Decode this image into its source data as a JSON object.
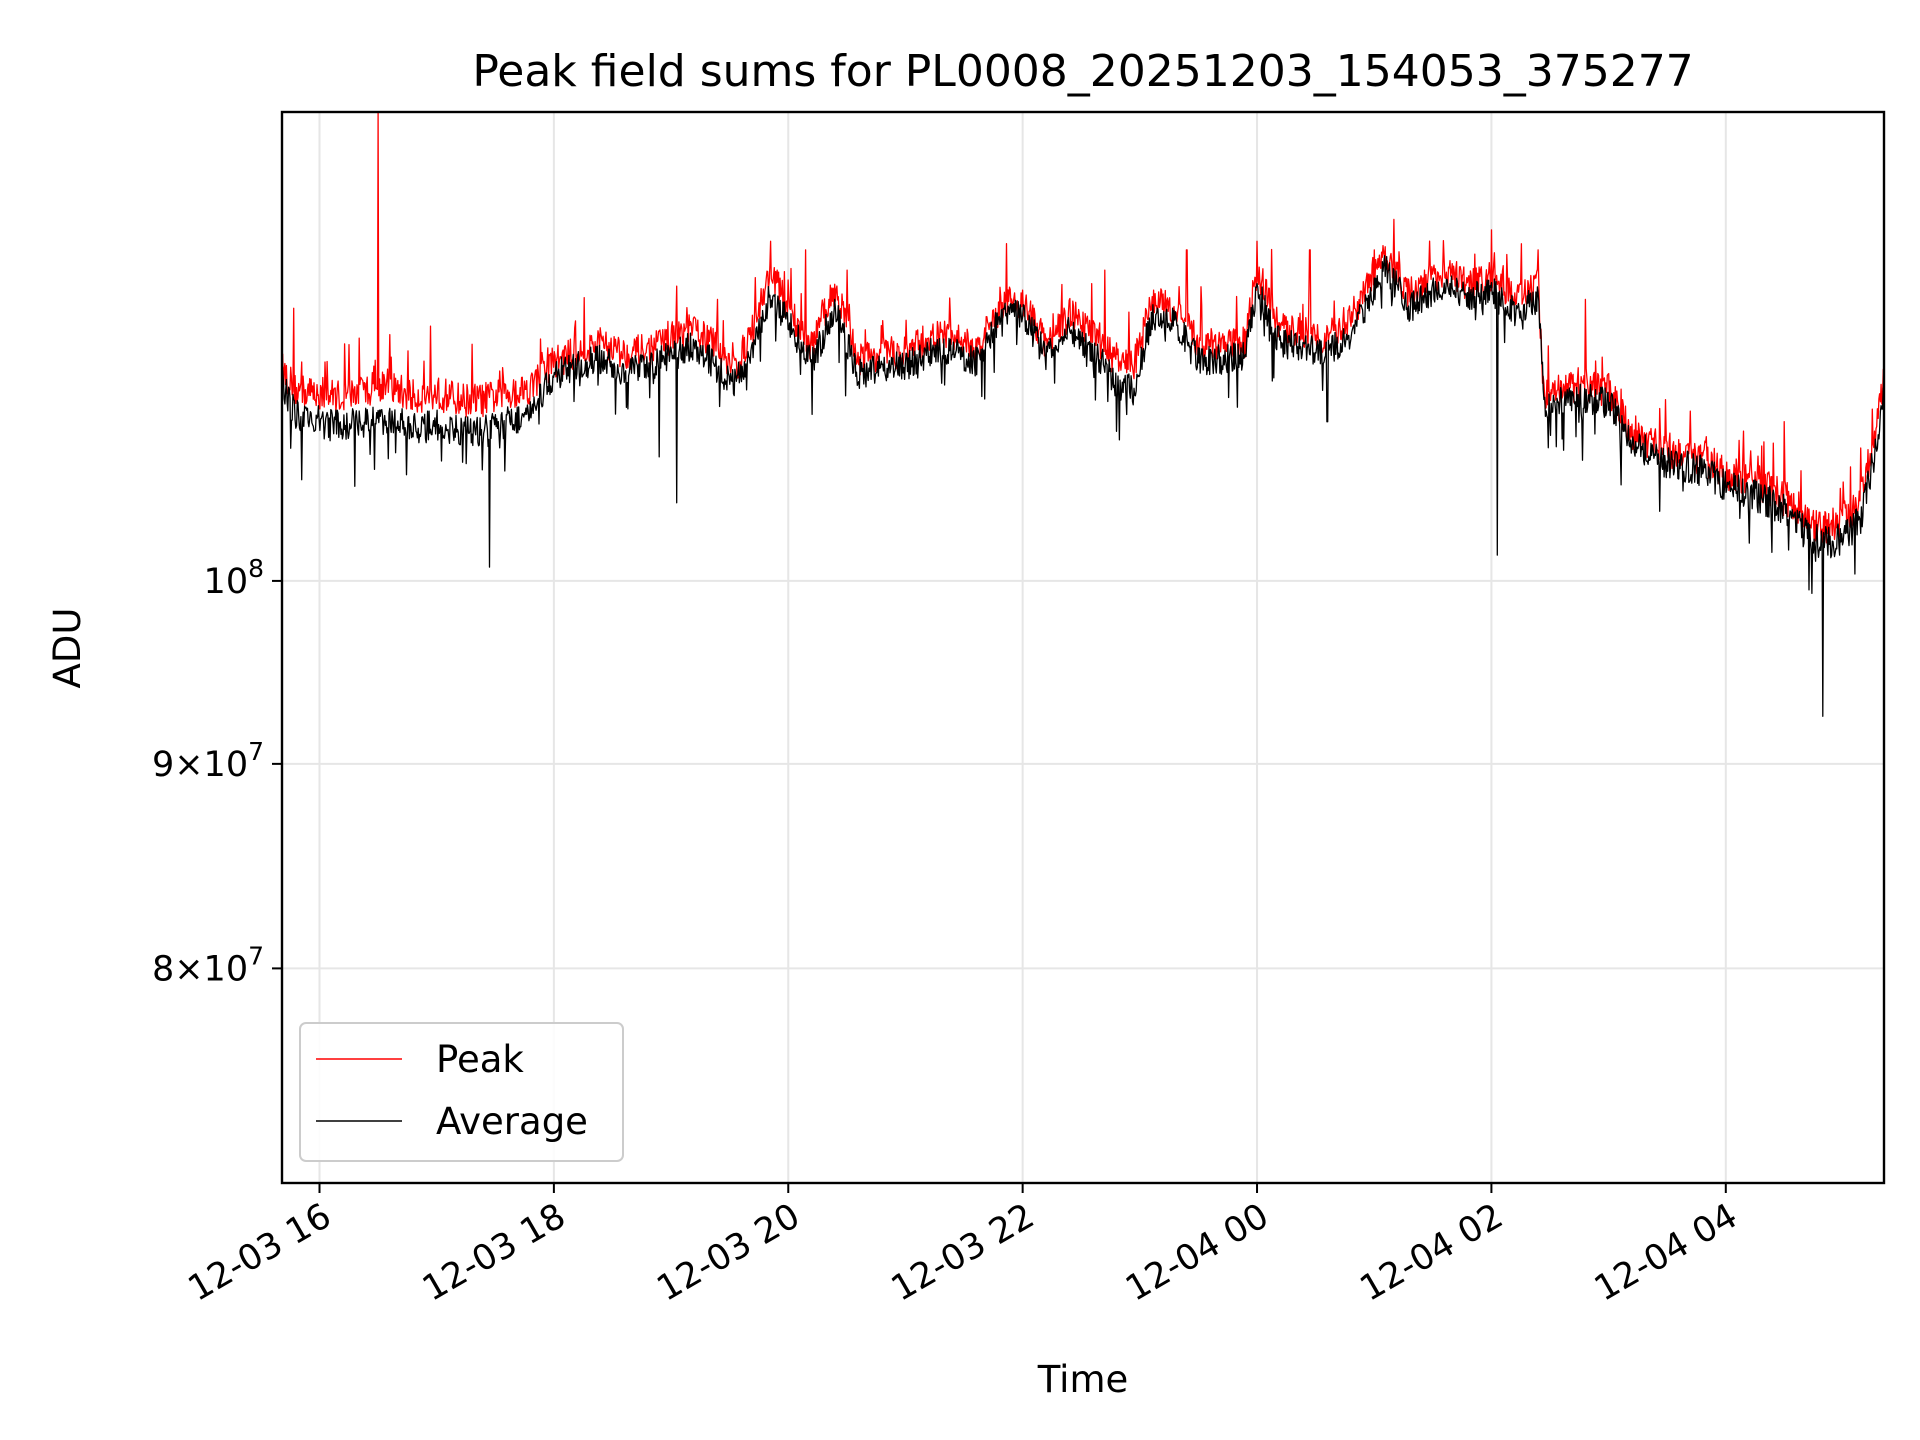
{
  "chart_data": {
    "type": "line",
    "title": "Peak field sums for PL0008_20251203_154053_375277",
    "xlabel": "Time",
    "ylabel": "ADU",
    "yscale": "log",
    "grid": true,
    "legend_position": "lower-left",
    "xlim_hours_since_2025-12-03_00:00": [
      15.68,
      29.35
    ],
    "ylim": [
      70700000,
      131000000
    ],
    "x_ticks": [
      {
        "value": 16,
        "label": "12-03 16"
      },
      {
        "value": 18,
        "label": "12-03 18"
      },
      {
        "value": 20,
        "label": "12-03 20"
      },
      {
        "value": 22,
        "label": "12-03 22"
      },
      {
        "value": 24,
        "label": "12-04 00"
      },
      {
        "value": 26,
        "label": "12-04 02"
      },
      {
        "value": 28,
        "label": "12-04 04"
      }
    ],
    "y_ticks": [
      {
        "value": 80000000,
        "mantissa": "8",
        "exponent": "7"
      },
      {
        "value": 90000000,
        "mantissa": "9",
        "exponent": "7"
      },
      {
        "value": 100000000,
        "mantissa": "10",
        "exponent": "8"
      }
    ],
    "series": [
      {
        "name": "Peak",
        "color": "#ff0000",
        "points": [
          [
            15.68,
            113.0
          ],
          [
            15.8,
            111.6
          ],
          [
            16.0,
            111.4
          ],
          [
            16.2,
            111.2
          ],
          [
            16.4,
            111.6
          ],
          [
            16.55,
            112.0
          ],
          [
            16.8,
            111.2
          ],
          [
            17.0,
            111.4
          ],
          [
            17.2,
            111.0
          ],
          [
            17.4,
            111.0
          ],
          [
            17.6,
            111.4
          ],
          [
            17.8,
            111.8
          ],
          [
            18.0,
            113.5
          ],
          [
            18.2,
            114.0
          ],
          [
            18.4,
            114.7
          ],
          [
            18.6,
            114.0
          ],
          [
            18.8,
            114.2
          ],
          [
            19.0,
            115.0
          ],
          [
            19.2,
            115.6
          ],
          [
            19.4,
            114.4
          ],
          [
            19.55,
            113.0
          ],
          [
            19.7,
            115.6
          ],
          [
            19.85,
            119.6
          ],
          [
            20.0,
            117.0
          ],
          [
            20.2,
            114.4
          ],
          [
            20.4,
            118.4
          ],
          [
            20.6,
            113.6
          ],
          [
            20.8,
            114.0
          ],
          [
            21.0,
            114.0
          ],
          [
            21.2,
            115.0
          ],
          [
            21.4,
            115.2
          ],
          [
            21.6,
            114.2
          ],
          [
            21.85,
            117.5
          ],
          [
            22.0,
            117.4
          ],
          [
            22.2,
            114.6
          ],
          [
            22.4,
            116.6
          ],
          [
            22.6,
            115.2
          ],
          [
            22.8,
            113.6
          ],
          [
            22.95,
            113.2
          ],
          [
            23.1,
            117.4
          ],
          [
            23.3,
            117.0
          ],
          [
            23.5,
            114.6
          ],
          [
            23.7,
            114.6
          ],
          [
            23.9,
            114.8
          ],
          [
            24.0,
            119.6
          ],
          [
            24.2,
            115.6
          ],
          [
            24.4,
            115.4
          ],
          [
            24.6,
            115.0
          ],
          [
            24.8,
            116.4
          ],
          [
            25.1,
            120.6
          ],
          [
            25.3,
            118.0
          ],
          [
            25.6,
            119.6
          ],
          [
            25.8,
            118.6
          ],
          [
            26.0,
            119.2
          ],
          [
            26.2,
            117.8
          ],
          [
            26.4,
            118.6
          ],
          [
            26.45,
            111.0
          ],
          [
            26.6,
            111.6
          ],
          [
            26.75,
            112.0
          ],
          [
            27.0,
            111.6
          ],
          [
            27.2,
            109.0
          ],
          [
            27.5,
            107.8
          ],
          [
            27.8,
            107.4
          ],
          [
            28.0,
            106.4
          ],
          [
            28.2,
            106.0
          ],
          [
            28.4,
            105.4
          ],
          [
            28.6,
            104.4
          ],
          [
            28.8,
            103.0
          ],
          [
            29.0,
            103.6
          ],
          [
            29.15,
            104.6
          ],
          [
            29.3,
            110.0
          ],
          [
            29.35,
            112.5
          ]
        ],
        "spikes": [
          [
            16.5,
            131.0
          ],
          [
            15.78,
            117.0
          ],
          [
            16.95,
            115.8
          ],
          [
            17.3,
            114.6
          ],
          [
            19.85,
            121.6
          ],
          [
            20.15,
            121.0
          ],
          [
            20.5,
            119.6
          ],
          [
            22.7,
            119.6
          ],
          [
            23.4,
            121.0
          ],
          [
            24.0,
            121.6
          ],
          [
            24.45,
            121.0
          ],
          [
            25.0,
            121.0
          ],
          [
            26.0,
            122.4
          ],
          [
            26.4,
            121.0
          ],
          [
            26.8,
            117.6
          ],
          [
            28.5,
            109.6
          ],
          [
            29.25,
            110.4
          ]
        ]
      },
      {
        "name": "Average",
        "color": "#000000",
        "points": [
          [
            15.68,
            112.0
          ],
          [
            15.8,
            110.0
          ],
          [
            16.0,
            109.6
          ],
          [
            16.2,
            109.4
          ],
          [
            16.4,
            109.6
          ],
          [
            16.55,
            109.8
          ],
          [
            16.8,
            109.2
          ],
          [
            17.0,
            109.4
          ],
          [
            17.2,
            109.0
          ],
          [
            17.4,
            109.0
          ],
          [
            17.6,
            109.6
          ],
          [
            17.8,
            110.0
          ],
          [
            18.0,
            112.6
          ],
          [
            18.2,
            113.2
          ],
          [
            18.4,
            113.6
          ],
          [
            18.6,
            112.8
          ],
          [
            18.8,
            113.0
          ],
          [
            19.0,
            114.0
          ],
          [
            19.2,
            114.6
          ],
          [
            19.4,
            113.0
          ],
          [
            19.55,
            112.0
          ],
          [
            19.7,
            114.6
          ],
          [
            19.85,
            118.0
          ],
          [
            20.0,
            116.0
          ],
          [
            20.2,
            113.4
          ],
          [
            20.4,
            117.0
          ],
          [
            20.6,
            112.6
          ],
          [
            20.8,
            113.0
          ],
          [
            21.0,
            113.2
          ],
          [
            21.2,
            114.0
          ],
          [
            21.4,
            114.2
          ],
          [
            21.6,
            113.4
          ],
          [
            21.85,
            116.8
          ],
          [
            22.0,
            116.6
          ],
          [
            22.2,
            113.8
          ],
          [
            22.4,
            115.6
          ],
          [
            22.6,
            114.2
          ],
          [
            22.8,
            112.0
          ],
          [
            22.95,
            111.6
          ],
          [
            23.1,
            116.4
          ],
          [
            23.3,
            116.0
          ],
          [
            23.5,
            113.6
          ],
          [
            23.7,
            113.6
          ],
          [
            23.9,
            113.8
          ],
          [
            24.0,
            118.4
          ],
          [
            24.2,
            114.6
          ],
          [
            24.4,
            114.4
          ],
          [
            24.6,
            114.0
          ],
          [
            24.8,
            115.2
          ],
          [
            25.1,
            119.8
          ],
          [
            25.3,
            117.0
          ],
          [
            25.6,
            118.6
          ],
          [
            25.8,
            117.6
          ],
          [
            26.0,
            118.2
          ],
          [
            26.2,
            116.8
          ],
          [
            26.4,
            117.6
          ],
          [
            26.45,
            110.4
          ],
          [
            26.6,
            110.8
          ],
          [
            26.75,
            111.2
          ],
          [
            27.0,
            110.8
          ],
          [
            27.2,
            108.4
          ],
          [
            27.5,
            107.0
          ],
          [
            27.8,
            106.6
          ],
          [
            28.0,
            105.6
          ],
          [
            28.2,
            105.2
          ],
          [
            28.4,
            104.6
          ],
          [
            28.6,
            103.6
          ],
          [
            28.8,
            102.2
          ],
          [
            29.0,
            102.4
          ],
          [
            29.15,
            103.6
          ],
          [
            29.3,
            108.6
          ],
          [
            29.35,
            111.5
          ]
        ],
        "dips": [
          [
            15.85,
            106.0
          ],
          [
            16.3,
            105.6
          ],
          [
            17.45,
            100.8
          ],
          [
            18.9,
            107.4
          ],
          [
            19.05,
            104.6
          ],
          [
            22.8,
            109.0
          ],
          [
            24.6,
            109.6
          ],
          [
            26.05,
            101.5
          ],
          [
            28.2,
            102.2
          ],
          [
            28.83,
            92.5
          ],
          [
            29.1,
            100.4
          ]
        ]
      }
    ]
  }
}
